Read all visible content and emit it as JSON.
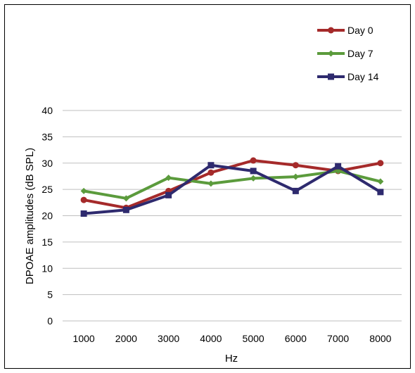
{
  "chart_data": {
    "type": "line",
    "title": "",
    "xlabel": "Hz",
    "ylabel": "DPOAE amplitudes (dB SPL)",
    "categories": [
      "1000",
      "2000",
      "3000",
      "4000",
      "5000",
      "6000",
      "7000",
      "8000"
    ],
    "ylim": [
      0,
      40
    ],
    "yticks": [
      "0",
      "5",
      "10",
      "15",
      "20",
      "25",
      "30",
      "35",
      "40"
    ],
    "grid": true,
    "legend_position": "top-right",
    "series": [
      {
        "name": "Day 0",
        "color": "#A52A2A",
        "marker": "circle",
        "values": [
          23.0,
          21.5,
          24.7,
          28.2,
          30.5,
          29.6,
          28.5,
          30.0
        ]
      },
      {
        "name": "Day 7",
        "color": "#5B9B3C",
        "marker": "diamond",
        "values": [
          24.7,
          23.3,
          27.2,
          26.1,
          27.1,
          27.4,
          28.5,
          26.5
        ]
      },
      {
        "name": "Day 14",
        "color": "#2E2A6E",
        "marker": "square",
        "values": [
          20.4,
          21.1,
          23.9,
          29.6,
          28.5,
          24.7,
          29.4,
          24.5
        ]
      }
    ]
  }
}
